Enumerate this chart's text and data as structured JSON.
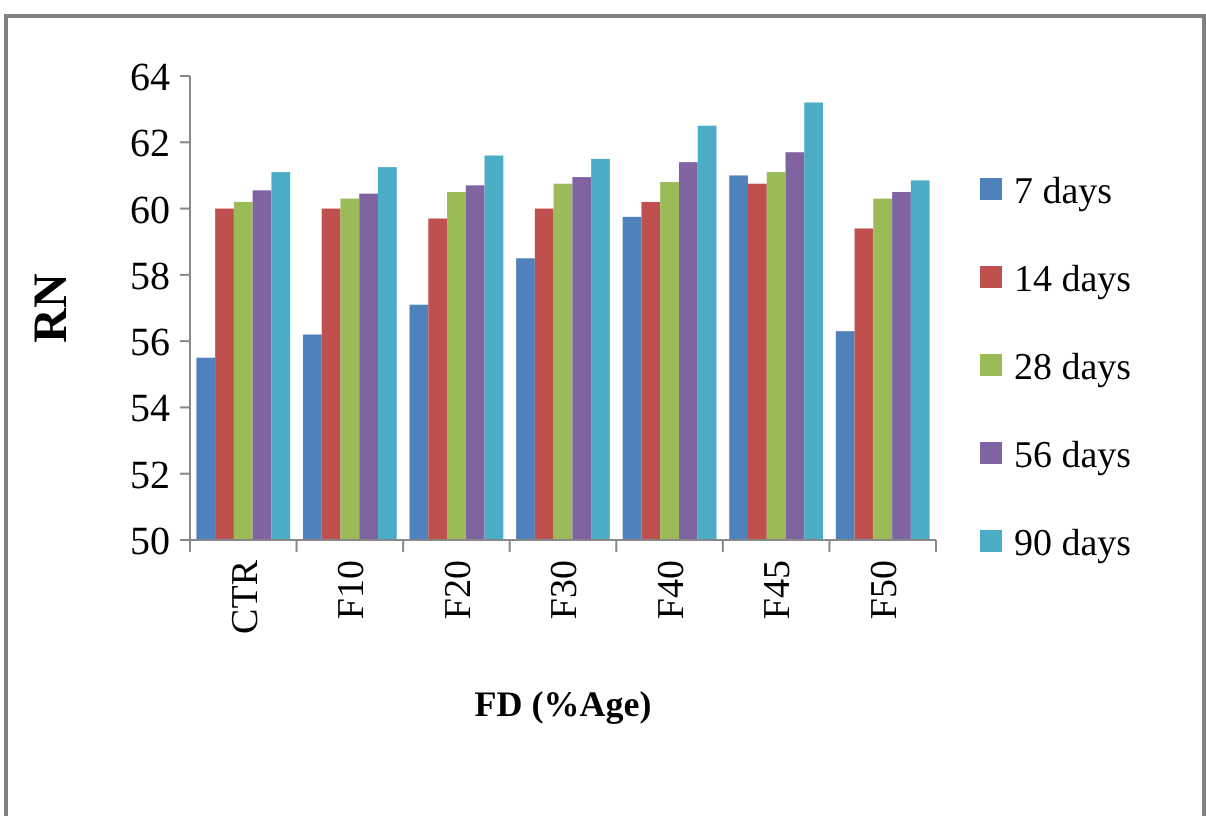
{
  "chart_data": {
    "type": "bar",
    "xlabel": "FD (%Age)",
    "ylabel": "RN",
    "categories": [
      "CTR",
      "F10",
      "F20",
      "F30",
      "F40",
      "F45",
      "F50"
    ],
    "series": [
      {
        "name": "7 days",
        "color": "#4f81bd",
        "values": [
          55.5,
          56.2,
          57.1,
          58.5,
          59.75,
          61.0,
          56.3
        ]
      },
      {
        "name": "14 days",
        "color": "#c0504d",
        "values": [
          60.0,
          60.0,
          59.7,
          60.0,
          60.2,
          60.75,
          59.4
        ]
      },
      {
        "name": "28 days",
        "color": "#9bbb59",
        "values": [
          60.2,
          60.3,
          60.5,
          60.75,
          60.8,
          61.1,
          60.3
        ]
      },
      {
        "name": "56 days",
        "color": "#8064a2",
        "values": [
          60.55,
          60.45,
          60.7,
          60.95,
          61.4,
          61.7,
          60.5
        ]
      },
      {
        "name": "90 days",
        "color": "#4bacc6",
        "values": [
          61.1,
          61.25,
          61.6,
          61.5,
          62.5,
          63.2,
          60.85
        ]
      }
    ],
    "ylim": [
      50,
      64
    ],
    "yticks": [
      50,
      52,
      54,
      56,
      58,
      60,
      62,
      64
    ],
    "grid": false,
    "legend": "right"
  }
}
